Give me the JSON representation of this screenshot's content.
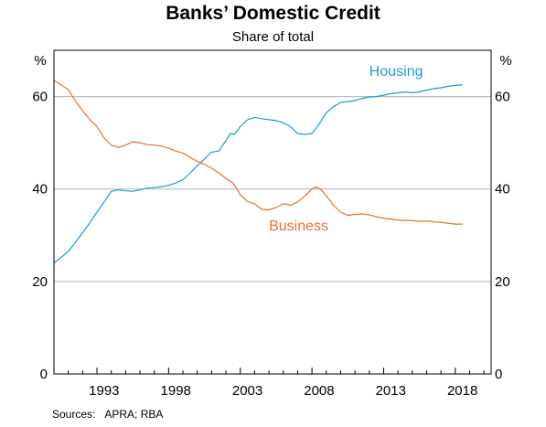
{
  "chart_data": {
    "type": "line",
    "title": "Banks’ Domestic Credit",
    "subtitle": "Share of total",
    "ylabel_left": "%",
    "ylabel_right": "%",
    "source_label": "Sources:",
    "source_text": "APRA; RBA",
    "xlim": [
      1990.0,
      2020.5
    ],
    "ylim": [
      0,
      70
    ],
    "xticks": [
      1993,
      1998,
      2003,
      2008,
      2013,
      2018
    ],
    "yticks": [
      0,
      20,
      40,
      60
    ],
    "gridlines_y": [
      20,
      40,
      60
    ],
    "grid": true,
    "legend": "inline-labels",
    "series": [
      {
        "name": "Housing",
        "color": "#1b9bd7",
        "label_pos": [
          2012.0,
          64.5
        ],
        "x": [
          1990.0,
          1990.5,
          1991.0,
          1991.5,
          1992.0,
          1992.5,
          1993.0,
          1993.5,
          1994.0,
          1994.5,
          1995.0,
          1995.5,
          1996.0,
          1996.5,
          1997.0,
          1997.5,
          1998.0,
          1998.5,
          1999.0,
          1999.5,
          2000.0,
          2000.5,
          2001.0,
          2001.5,
          2002.0,
          2002.3,
          2002.6,
          2003.0,
          2003.5,
          2004.0,
          2004.5,
          2005.0,
          2005.5,
          2006.0,
          2006.5,
          2007.0,
          2007.5,
          2008.0,
          2008.5,
          2009.0,
          2009.5,
          2010.0,
          2010.5,
          2011.0,
          2011.5,
          2012.0,
          2012.5,
          2013.0,
          2013.5,
          2014.0,
          2014.5,
          2015.0,
          2015.5,
          2016.0,
          2016.5,
          2017.0,
          2017.5,
          2018.0,
          2018.5
        ],
        "values": [
          24.0,
          25.2,
          26.5,
          28.5,
          30.5,
          32.7,
          35.0,
          37.2,
          39.5,
          39.8,
          39.6,
          39.5,
          39.8,
          40.2,
          40.3,
          40.5,
          40.8,
          41.3,
          42.0,
          43.5,
          45.0,
          46.5,
          48.0,
          48.2,
          50.5,
          52.0,
          51.8,
          53.5,
          55.0,
          55.5,
          55.2,
          55.0,
          54.8,
          54.3,
          53.5,
          52.0,
          51.8,
          52.0,
          54.0,
          56.5,
          57.8,
          58.7,
          58.9,
          59.1,
          59.6,
          59.9,
          60.0,
          60.3,
          60.6,
          60.8,
          61.0,
          60.8,
          61.0,
          61.4,
          61.7,
          61.9,
          62.2,
          62.4,
          62.5
        ]
      },
      {
        "name": "Business",
        "color": "#e87132",
        "label_pos": [
          2005.0,
          31.0
        ],
        "x": [
          1990.0,
          1990.5,
          1991.0,
          1991.5,
          1992.0,
          1992.5,
          1993.0,
          1993.5,
          1994.0,
          1994.5,
          1995.0,
          1995.5,
          1996.0,
          1996.5,
          1997.0,
          1997.5,
          1998.0,
          1998.5,
          1999.0,
          1999.5,
          2000.0,
          2000.5,
          2001.0,
          2001.5,
          2002.0,
          2002.5,
          2003.0,
          2003.5,
          2004.0,
          2004.5,
          2005.0,
          2005.5,
          2006.0,
          2006.5,
          2007.0,
          2007.5,
          2008.0,
          2008.3,
          2008.6,
          2009.0,
          2009.5,
          2010.0,
          2010.5,
          2011.0,
          2011.5,
          2012.0,
          2012.5,
          2013.0,
          2013.5,
          2014.0,
          2014.5,
          2015.0,
          2015.5,
          2016.0,
          2016.5,
          2017.0,
          2017.5,
          2018.0,
          2018.5
        ],
        "values": [
          63.5,
          62.5,
          61.5,
          59.0,
          57.0,
          55.0,
          53.5,
          51.0,
          49.5,
          49.0,
          49.5,
          50.2,
          50.0,
          49.6,
          49.5,
          49.3,
          48.8,
          48.2,
          47.8,
          46.8,
          46.0,
          45.3,
          44.5,
          43.5,
          42.3,
          41.3,
          38.8,
          37.3,
          36.8,
          35.6,
          35.5,
          36.0,
          36.8,
          36.5,
          37.2,
          38.5,
          40.0,
          40.4,
          40.0,
          38.5,
          36.5,
          35.0,
          34.3,
          34.5,
          34.6,
          34.4,
          34.0,
          33.7,
          33.5,
          33.3,
          33.2,
          33.2,
          33.0,
          33.1,
          32.9,
          32.8,
          32.6,
          32.4,
          32.4
        ]
      }
    ]
  }
}
